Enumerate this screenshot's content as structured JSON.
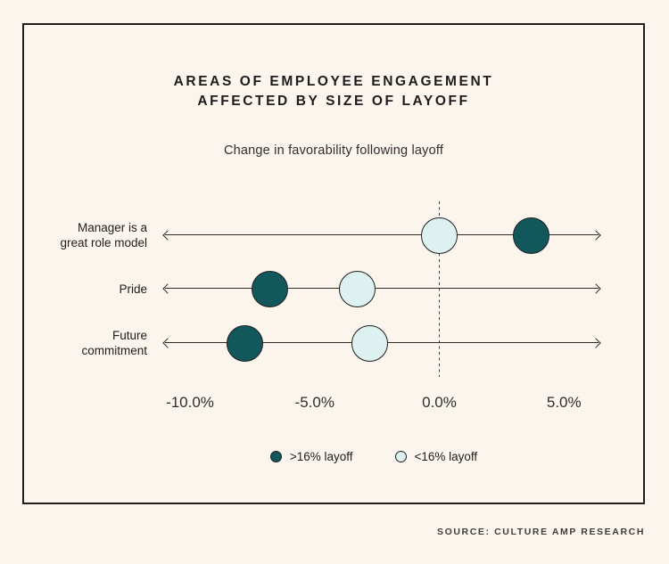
{
  "page": {
    "background": "#fcf5ee",
    "card_border_color": "#1f1f1f",
    "source_note": "SOURCE: CULTURE AMP RESEARCH"
  },
  "header": {
    "title_line1": "AREAS OF EMPLOYEE ENGAGEMENT",
    "title_line2": "AFFECTED BY SIZE OF LAYOFF",
    "subtitle": "Change in favorability following layoff"
  },
  "legend": {
    "items": [
      {
        "label": ">16% layoff",
        "key": "gt16",
        "color": "#12575c"
      },
      {
        "label": "<16% layoff",
        "key": "lt16",
        "color": "#ddf1f0"
      }
    ]
  },
  "chart_data": {
    "type": "scatter",
    "variant": "dot-strip-plot",
    "title": "Areas of employee engagement affected by size of layoff",
    "subtitle": "Change in favorability following layoff",
    "categories": [
      "Manager is a great role model",
      "Pride",
      "Future commitment"
    ],
    "category_label_lines": [
      [
        "Manager is a",
        "great role model"
      ],
      [
        "Pride"
      ],
      [
        "Future",
        "commitment"
      ]
    ],
    "series": [
      {
        "name": ">16% layoff",
        "key": "gt16",
        "color": "#12575c",
        "values": [
          3.7,
          -6.8,
          -7.8
        ]
      },
      {
        "name": "<16% layoff",
        "key": "lt16",
        "color": "#ddf1f0",
        "values": [
          0.0,
          -3.3,
          -2.8
        ]
      }
    ],
    "x_unit": "percentage points",
    "x_ticks": [
      -10,
      -5,
      0,
      5
    ],
    "x_tick_labels": [
      "-10.0%",
      "-5.0%",
      "0.0%",
      "5.0%"
    ],
    "xlim": [
      -11,
      6.4
    ],
    "zero_line": "dashed-vertical",
    "axis_style": "arrows-both-ends",
    "grid": false,
    "legend_position": "bottom",
    "source": "SOURCE: CULTURE AMP RESEARCH"
  }
}
